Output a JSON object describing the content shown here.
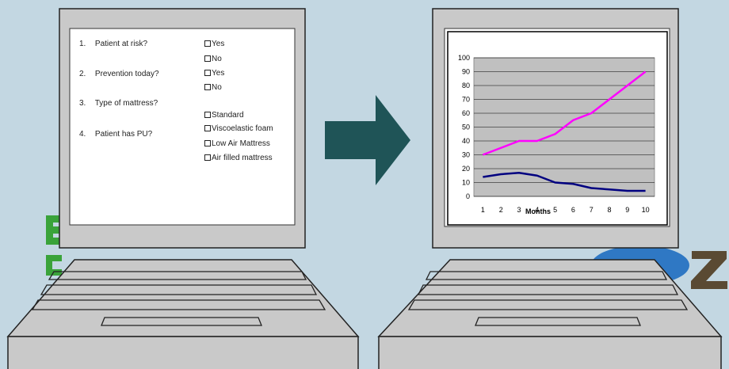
{
  "form": {
    "questions": [
      {
        "number": "1.",
        "text": "Patient at risk?"
      },
      {
        "number": "2.",
        "text": "Prevention today?"
      },
      {
        "number": "3.",
        "text": "Type of mattress?"
      },
      {
        "number": "4.",
        "text": "Patient has PU?"
      }
    ],
    "options": [
      "Yes",
      "No",
      "Yes",
      "No",
      "Standard",
      "Viscoelastic foam",
      "Low Air Mattress",
      "Air filled mattress"
    ]
  },
  "colors": {
    "background": "#c3d7e2",
    "arrow": "#1f5457",
    "computer_body": "#c9c9c9",
    "series_1": "#ff00ff",
    "series_2": "#000080",
    "plot_area": "#c0c0c0"
  },
  "chart_data": {
    "type": "line",
    "x": [
      1,
      2,
      3,
      4,
      5,
      6,
      7,
      8,
      9,
      10
    ],
    "categories": [
      "1",
      "2",
      "3",
      "4",
      "5",
      "6",
      "7",
      "8",
      "9",
      "10"
    ],
    "xlabel": "Months",
    "ylabel": "",
    "ylim": [
      0,
      100
    ],
    "yticks": [
      0,
      10,
      20,
      30,
      40,
      50,
      60,
      70,
      80,
      90,
      100
    ],
    "grid": true,
    "legend": "none",
    "series": [
      {
        "color": "#ff00ff",
        "values": [
          30,
          35,
          40,
          40,
          45,
          55,
          60,
          70,
          80,
          90
        ]
      },
      {
        "color": "#000080",
        "values": [
          14,
          16,
          17,
          15,
          10,
          9,
          6,
          5,
          4,
          4
        ]
      }
    ]
  }
}
